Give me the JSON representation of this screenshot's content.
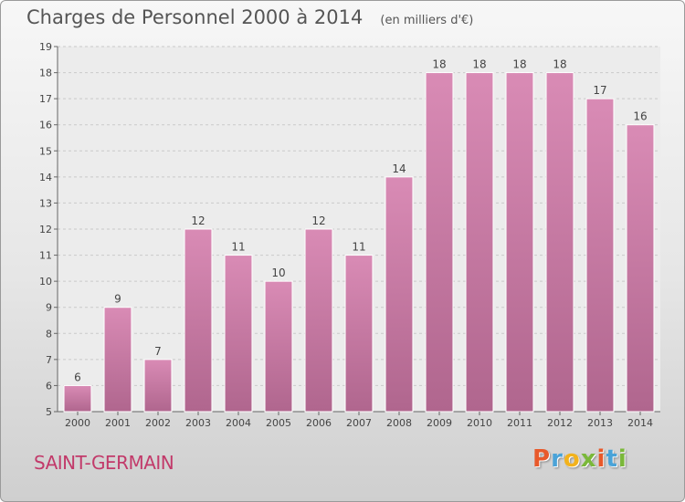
{
  "chart_data": {
    "type": "bar",
    "title": "Charges de Personnel 2000 à 2014",
    "subtitle": "(en milliers d'€)",
    "categories": [
      "2000",
      "2001",
      "2002",
      "2003",
      "2004",
      "2005",
      "2006",
      "2007",
      "2008",
      "2009",
      "2010",
      "2011",
      "2012",
      "2013",
      "2014"
    ],
    "values": [
      6,
      9,
      7,
      12,
      11,
      10,
      12,
      11,
      14,
      18,
      18,
      18,
      18,
      17,
      16
    ],
    "ylim": [
      5,
      19
    ],
    "yticks": [
      5,
      6,
      7,
      8,
      9,
      10,
      11,
      12,
      13,
      14,
      15,
      16,
      17,
      18,
      19
    ],
    "grid": true,
    "bar_color": "#d98bb5",
    "bar_color_dark": "#b0668e"
  },
  "footer": {
    "commune": "SAINT-GERMAIN",
    "logo_letters": [
      {
        "ch": "P",
        "color": "#e8592a"
      },
      {
        "ch": "r",
        "color": "#4aa3d8"
      },
      {
        "ch": "o",
        "color": "#f2b21c"
      },
      {
        "ch": "x",
        "color": "#7ab83a"
      },
      {
        "ch": "i",
        "color": "#e8592a"
      },
      {
        "ch": "t",
        "color": "#4aa3d8"
      },
      {
        "ch": "i",
        "color": "#7ab83a"
      }
    ]
  }
}
